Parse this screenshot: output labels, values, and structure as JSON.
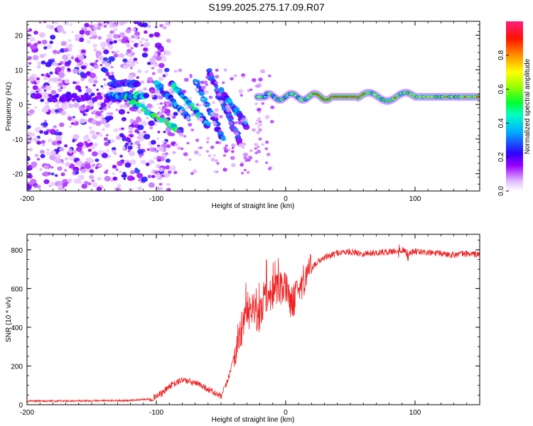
{
  "title": "S199.2025.275.17.09.R07",
  "colors": {
    "snr_line": "#ee2222",
    "frame": "#000000",
    "spectro_bg": "#ffffff"
  },
  "chart_data": [
    {
      "type": "heatmap",
      "name": "spectrogram",
      "xlabel": "Height of straight line (km)",
      "ylabel": "Frequency (Hz)",
      "xlim": [
        -200,
        150
      ],
      "ylim": [
        -25,
        24
      ],
      "xticks": [
        -200,
        -100,
        0,
        100
      ],
      "yticks": [
        -20,
        -10,
        0,
        10,
        20
      ],
      "description_features": {
        "noise_region_x": [
          -200,
          -100
        ],
        "carrier_frequency_hz": 2,
        "carrier_start_x": -20
      },
      "colorbar": {
        "label": "Normalized spectral amplitude",
        "range": [
          0,
          1
        ],
        "ticks": [
          0.0,
          0.2,
          0.4,
          0.6,
          0.8
        ],
        "colormap": "rainbow (white → violet → blue → cyan → green → yellow → orange → red → pink)"
      }
    },
    {
      "type": "line",
      "name": "snr",
      "xlabel": "Height of straight line (km)",
      "ylabel": "SNR (10 * v/v)",
      "xlim": [
        -200,
        150
      ],
      "ylim": [
        0,
        880
      ],
      "xticks": [
        -200,
        -100,
        0,
        100
      ],
      "yticks": [
        0,
        200,
        400,
        600,
        800
      ],
      "series": [
        {
          "name": "SNR",
          "x": [
            -200,
            -150,
            -120,
            -105,
            -100,
            -95,
            -90,
            -85,
            -80,
            -75,
            -70,
            -65,
            -60,
            -55,
            -50,
            -45,
            -40,
            -35,
            -30,
            -27,
            -25,
            -22,
            -20,
            -15,
            -10,
            -5,
            0,
            5,
            10,
            15,
            20,
            25,
            30,
            35,
            40,
            50,
            60,
            70,
            80,
            90,
            95,
            100,
            110,
            120,
            130,
            140,
            150
          ],
          "values": [
            18,
            20,
            22,
            30,
            45,
            60,
            95,
            110,
            130,
            120,
            110,
            100,
            80,
            60,
            40,
            120,
            250,
            380,
            450,
            500,
            520,
            430,
            480,
            560,
            580,
            590,
            600,
            520,
            600,
            660,
            700,
            740,
            760,
            770,
            785,
            790,
            780,
            785,
            790,
            800,
            780,
            790,
            785,
            780,
            775,
            780,
            775
          ]
        }
      ]
    }
  ]
}
